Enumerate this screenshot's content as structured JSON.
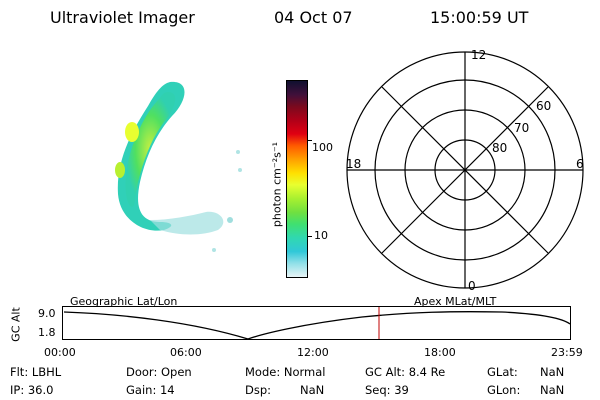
{
  "header": {
    "instrument": "Ultraviolet Imager",
    "date": "04 Oct 07",
    "time": "15:00:59 UT"
  },
  "colorbar": {
    "label": "photon cm⁻²s⁻¹",
    "ticks": [
      "100",
      "10"
    ],
    "colors": [
      "#101030",
      "#40103a",
      "#7a0a1e",
      "#b00018",
      "#e00012",
      "#ff5a00",
      "#ffa000",
      "#ffe000",
      "#e8ff30",
      "#a8f030",
      "#70e040",
      "#40e070",
      "#30d8b0",
      "#30c8d8",
      "#90e0e8",
      "#e8f4f6"
    ]
  },
  "polar": {
    "mlt_labels": [
      "12",
      "18",
      "6",
      "0"
    ],
    "lat_labels": [
      "60",
      "70",
      "80"
    ]
  },
  "timeline": {
    "axis_label": "GC Alt",
    "y_ticks": [
      "9.0",
      "1.8"
    ],
    "left_title": "Geographic Lat/Lon",
    "right_title": "Apex MLat/MLT",
    "x_ticks": [
      "00:00",
      "06:00",
      "12:00",
      "18:00",
      "23:59"
    ]
  },
  "info": {
    "flt": "Flt: LBHL",
    "ip": "IP: 36.0",
    "door": "Door: Open",
    "gain": "Gain: 14",
    "mode": "Mode: Normal",
    "dsp": "Dsp:",
    "dsp_val": "NaN",
    "gcalt": "GC Alt: 8.4 Re",
    "seq": "Seq: 39",
    "glat": "GLat:",
    "glat_val": "NaN",
    "glon": "GLon:",
    "glon_val": "NaN"
  }
}
